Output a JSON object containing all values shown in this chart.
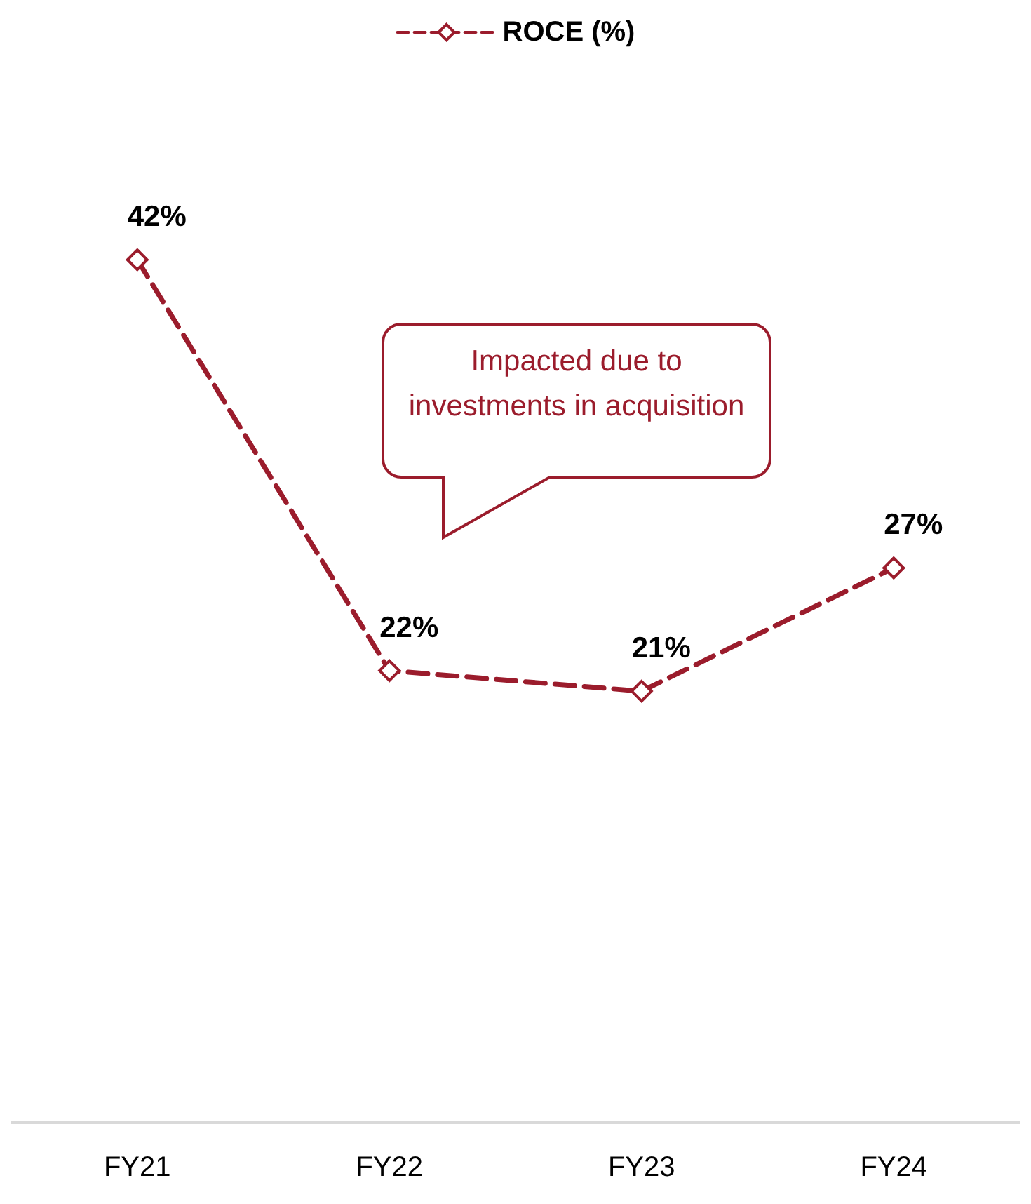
{
  "chart_data": {
    "type": "line",
    "categories": [
      "FY21",
      "FY22",
      "FY23",
      "FY24"
    ],
    "series": [
      {
        "name": "ROCE (%)",
        "color": "#9b1c2c",
        "values": [
          42,
          22,
          21,
          27
        ],
        "value_labels": [
          "42%",
          "22%",
          "21%",
          "27%"
        ]
      }
    ],
    "tick_labels": "x",
    "legend": "top",
    "marker": "diamond",
    "line_style": "dashed",
    "grid": false,
    "annotations": [
      "Impacted due to investments in acquisition"
    ]
  }
}
